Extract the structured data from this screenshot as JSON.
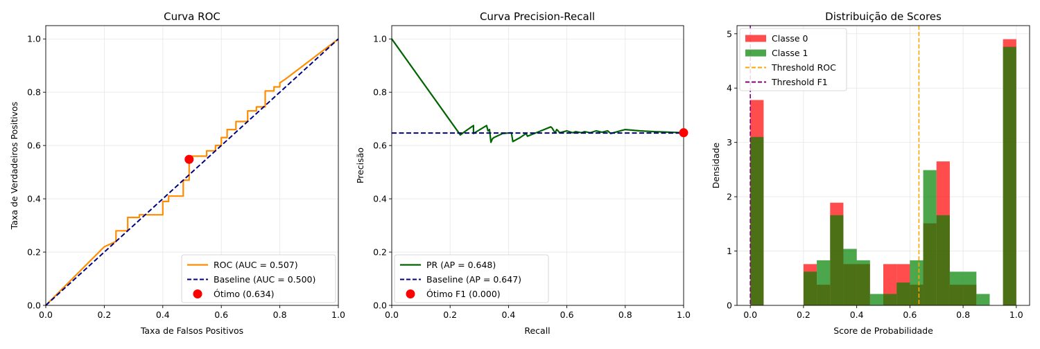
{
  "chart_data": [
    {
      "type": "line",
      "title": "Curva ROC",
      "xlabel": "Taxa de Falsos Positivos",
      "ylabel": "Taxa de Verdadeiros Positivos",
      "xlim": [
        0,
        1
      ],
      "ylim": [
        0,
        1.05
      ],
      "xticks": [
        "0.0",
        "0.2",
        "0.4",
        "0.6",
        "0.8",
        "1.0"
      ],
      "yticks": [
        "0.0",
        "0.2",
        "0.4",
        "0.6",
        "0.8",
        "1.0"
      ],
      "grid": true,
      "legend_position": "lower-right",
      "series": [
        {
          "name": "ROC (AUC = 0.507)",
          "color": "#ff8c00",
          "style": "solid",
          "x": [
            0,
            0.2,
            0.24,
            0.24,
            0.28,
            0.28,
            0.32,
            0.32,
            0.34,
            0.34,
            0.4,
            0.4,
            0.42,
            0.42,
            0.47,
            0.47,
            0.49,
            0.49,
            0.55,
            0.55,
            0.58,
            0.58,
            0.6,
            0.6,
            0.62,
            0.62,
            0.65,
            0.65,
            0.69,
            0.69,
            0.72,
            0.72,
            0.75,
            0.75,
            0.78,
            0.78,
            0.8,
            0.8,
            0.82,
            1.0
          ],
          "y": [
            0,
            0.22,
            0.24,
            0.28,
            0.28,
            0.33,
            0.33,
            0.34,
            0.34,
            0.34,
            0.34,
            0.39,
            0.39,
            0.41,
            0.41,
            0.47,
            0.47,
            0.56,
            0.56,
            0.58,
            0.58,
            0.6,
            0.6,
            0.63,
            0.63,
            0.66,
            0.66,
            0.69,
            0.69,
            0.73,
            0.73,
            0.745,
            0.745,
            0.805,
            0.805,
            0.82,
            0.82,
            0.835,
            0.85,
            1.0
          ]
        },
        {
          "name": "Baseline (AUC = 0.500)",
          "color": "#000080",
          "style": "dashed",
          "x": [
            0,
            1
          ],
          "y": [
            0,
            1
          ]
        }
      ],
      "points": [
        {
          "name": "Ótimo (0.634)",
          "color": "#ff0000",
          "x": 0.49,
          "y": 0.548
        }
      ]
    },
    {
      "type": "line",
      "title": "Curva Precision-Recall",
      "xlabel": "Recall",
      "ylabel": "Precisão",
      "xlim": [
        0,
        1
      ],
      "ylim": [
        0,
        1.05
      ],
      "xticks": [
        "0.0",
        "0.2",
        "0.4",
        "0.6",
        "0.8",
        "1.0"
      ],
      "yticks": [
        "0.0",
        "0.2",
        "0.4",
        "0.6",
        "0.8",
        "1.0"
      ],
      "grid": true,
      "legend_position": "lower-left",
      "series": [
        {
          "name": "PR (AP = 0.648)",
          "color": "#006400",
          "style": "solid",
          "x": [
            0,
            0.235,
            0.26,
            0.28,
            0.28,
            0.325,
            0.33,
            0.335,
            0.34,
            0.345,
            0.35,
            0.38,
            0.41,
            0.415,
            0.44,
            0.46,
            0.465,
            0.5,
            0.545,
            0.55,
            0.555,
            0.56,
            0.565,
            0.57,
            0.575,
            0.6,
            0.62,
            0.63,
            0.65,
            0.66,
            0.68,
            0.7,
            0.72,
            0.74,
            0.75,
            0.8,
            0.85,
            0.9,
            0.95,
            1.0
          ],
          "y": [
            1.0,
            0.64,
            0.66,
            0.675,
            0.645,
            0.675,
            0.655,
            0.66,
            0.612,
            0.625,
            0.63,
            0.645,
            0.648,
            0.615,
            0.63,
            0.645,
            0.635,
            0.65,
            0.67,
            0.665,
            0.655,
            0.648,
            0.66,
            0.655,
            0.648,
            0.655,
            0.648,
            0.652,
            0.648,
            0.652,
            0.648,
            0.655,
            0.65,
            0.655,
            0.645,
            0.66,
            0.655,
            0.652,
            0.65,
            0.648
          ]
        },
        {
          "name": "Baseline (AP = 0.647)",
          "color": "#000080",
          "style": "dashed",
          "x": [
            0,
            1
          ],
          "y": [
            0.647,
            0.647
          ]
        }
      ],
      "points": [
        {
          "name": "Ótimo F1 (0.000)",
          "color": "#ff0000",
          "x": 1.0,
          "y": 0.648
        }
      ]
    },
    {
      "type": "bar",
      "title": "Distribuição de Scores",
      "xlabel": "Score de Probabilidade",
      "ylabel": "Densidade",
      "xlim": [
        -0.05,
        1.05
      ],
      "ylim": [
        0,
        5.15
      ],
      "xticks": [
        "0.0",
        "0.2",
        "0.4",
        "0.6",
        "0.8",
        "1.0"
      ],
      "yticks": [
        "0",
        "1",
        "2",
        "3",
        "4",
        "5"
      ],
      "grid": true,
      "legend_position": "top-left",
      "bin_edges": [
        0.0,
        0.05,
        0.1,
        0.15,
        0.2,
        0.25,
        0.3,
        0.35,
        0.4,
        0.45,
        0.5,
        0.55,
        0.6,
        0.65,
        0.7,
        0.75,
        0.8,
        0.85,
        0.9,
        0.95,
        1.0
      ],
      "series": [
        {
          "name": "Classe 0",
          "color": "#ff0000",
          "values": [
            3.78,
            0,
            0,
            0,
            0.76,
            0.38,
            1.89,
            0.76,
            0.76,
            0,
            0.76,
            0.76,
            0.38,
            1.51,
            2.65,
            0.38,
            0.38,
            0,
            0,
            4.9
          ]
        },
        {
          "name": "Classe 1",
          "color": "#008000",
          "values": [
            3.1,
            0,
            0,
            0,
            0.62,
            0.83,
            1.66,
            1.04,
            0.83,
            0.21,
            0.21,
            0.42,
            0.83,
            2.49,
            1.66,
            0.62,
            0.62,
            0.21,
            0,
            4.76
          ]
        }
      ],
      "vlines": [
        {
          "name": "Threshold ROC",
          "color": "#ffa500",
          "x": 0.634
        },
        {
          "name": "Threshold F1",
          "color": "#800080",
          "x": 0.0
        }
      ]
    }
  ]
}
